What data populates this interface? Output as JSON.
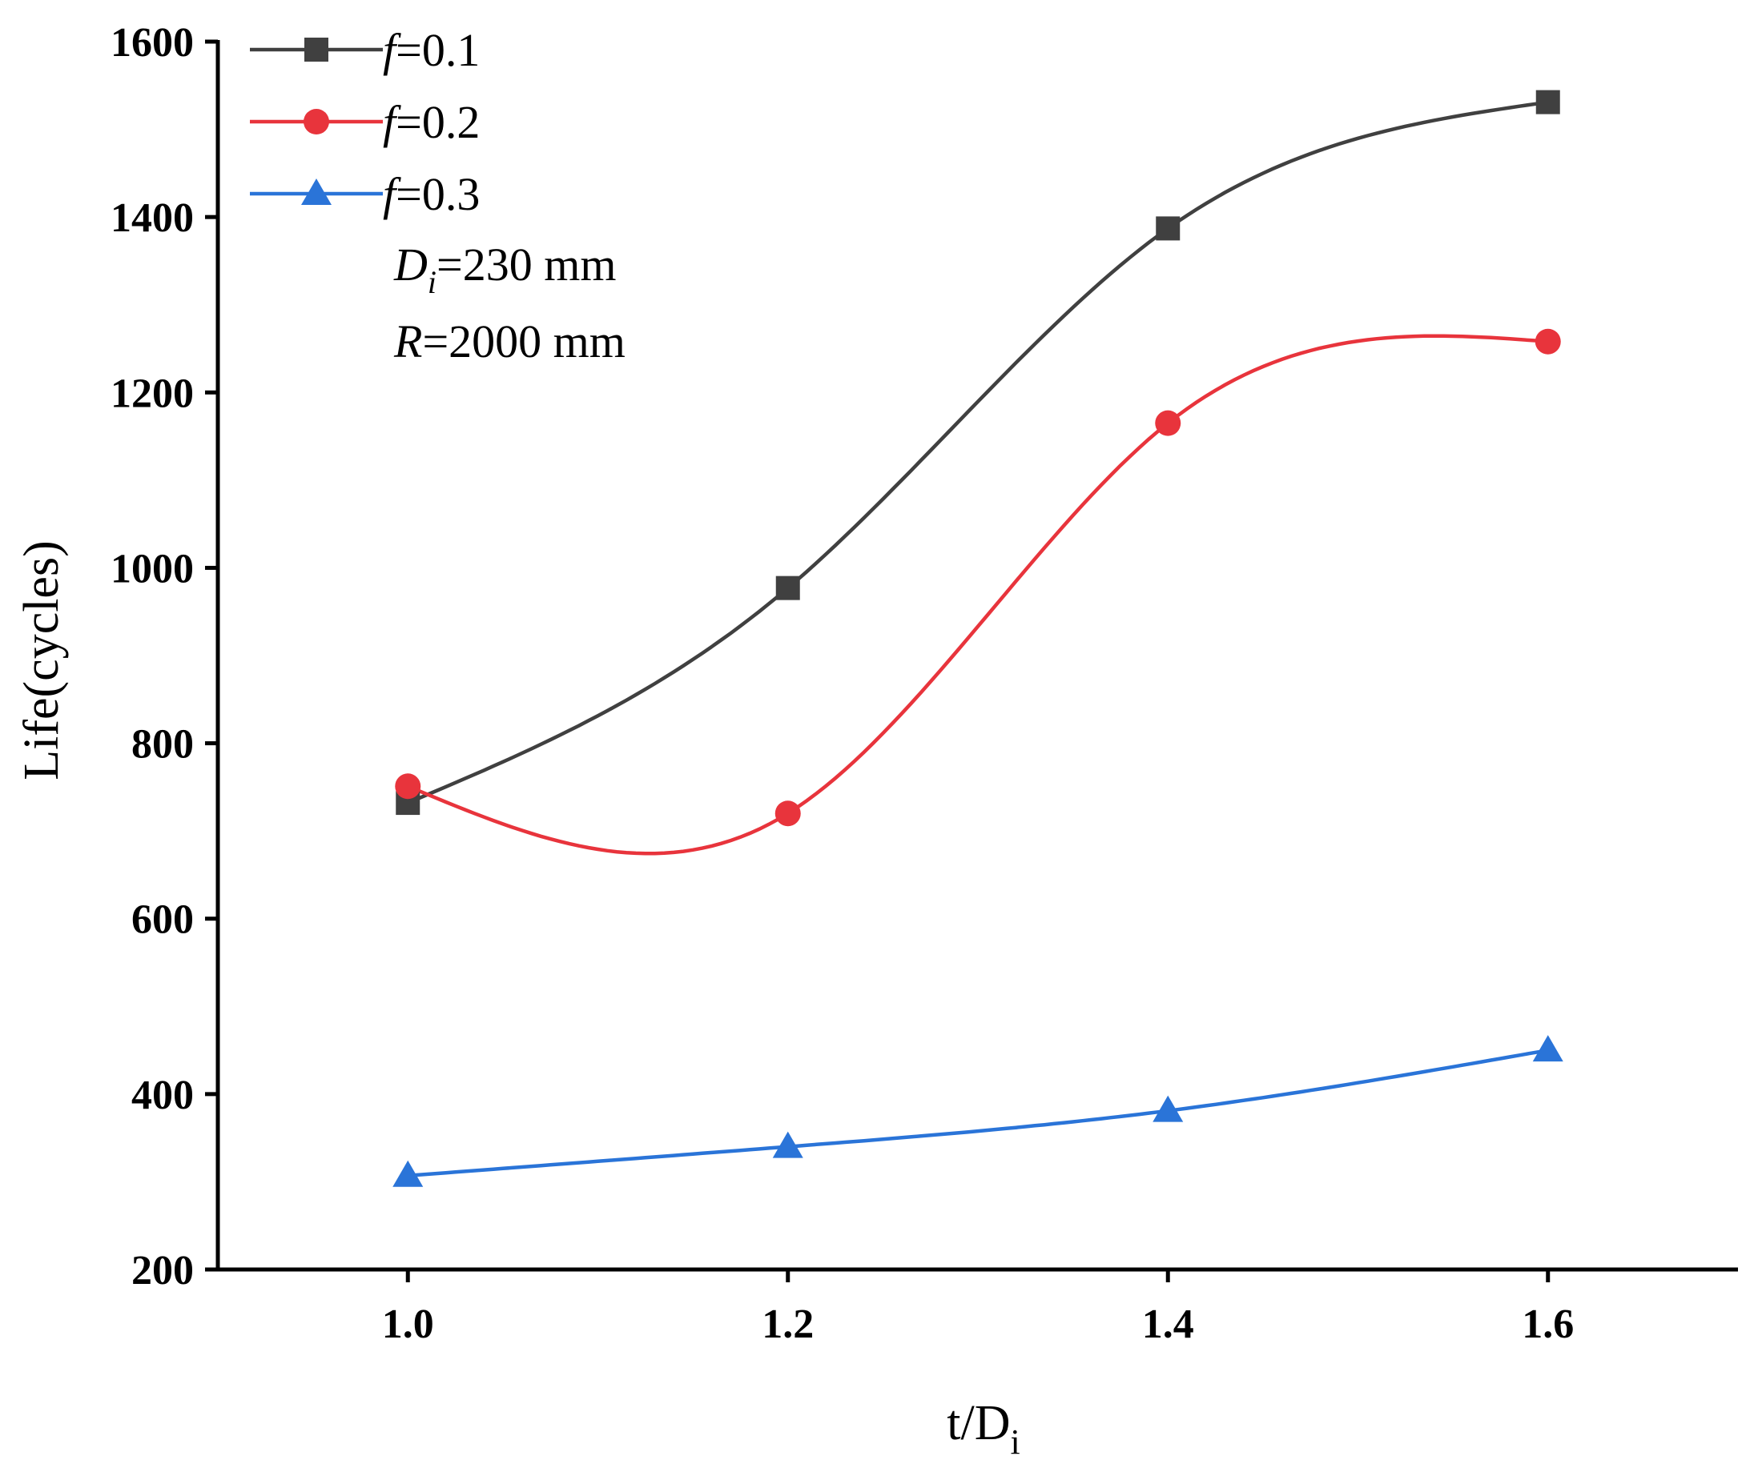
{
  "chart_data": {
    "type": "line",
    "title": "",
    "xlabel": "t/D",
    "xlabel_sub": "i",
    "ylabel": "Life(cycles)",
    "xlim": [
      0.9,
      1.7
    ],
    "ylim": [
      200,
      1600
    ],
    "xticks": [
      1.0,
      1.2,
      1.4,
      1.6
    ],
    "xtick_labels": [
      "1.0",
      "1.2",
      "1.4",
      "1.6"
    ],
    "yticks": [
      200,
      400,
      600,
      800,
      1000,
      1200,
      1400,
      1600
    ],
    "ytick_labels": [
      "200",
      "400",
      "600",
      "800",
      "1000",
      "1200",
      "1400",
      "1600"
    ],
    "grid": false,
    "legend_position": "top-left",
    "x": [
      1.0,
      1.2,
      1.4,
      1.6
    ],
    "series": [
      {
        "name": "f=0.1",
        "italic": "f",
        "value_text": "=0.1",
        "marker": "square",
        "color": "#404040",
        "values": [
          732,
          977,
          1387,
          1531
        ]
      },
      {
        "name": "f=0.2",
        "italic": "f",
        "value_text": "=0.2",
        "marker": "circle",
        "color": "#e8343c",
        "values": [
          751,
          720,
          1165,
          1258
        ]
      },
      {
        "name": "f=0.3",
        "italic": "f",
        "value_text": "=0.3",
        "marker": "triangle",
        "color": "#2a74d8",
        "values": [
          307,
          340,
          381,
          450
        ]
      }
    ],
    "annotations": [
      {
        "italic": "D",
        "sub": "i",
        "text": "=230 mm"
      },
      {
        "italic": "R",
        "sub": "",
        "text": "=2000 mm"
      }
    ]
  }
}
